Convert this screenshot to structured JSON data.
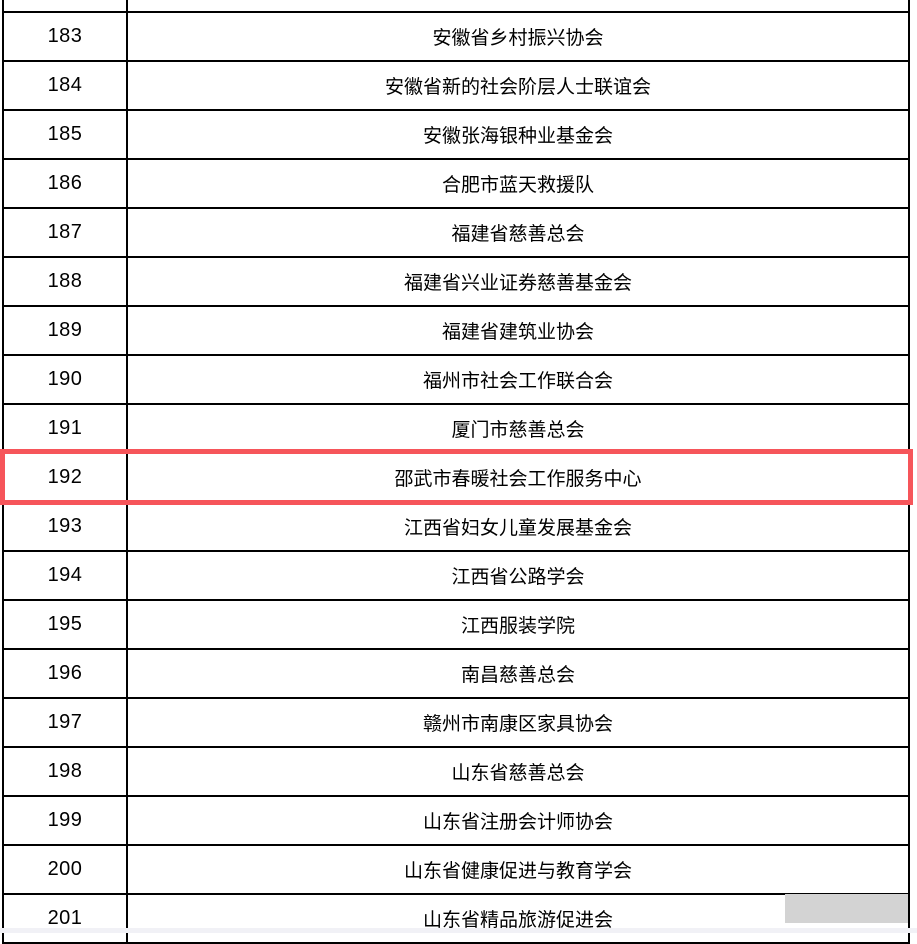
{
  "colors": {
    "table_border": "#000000",
    "highlight_red": "#f6555a",
    "overlay_gray": "#d3d3d3",
    "bottom_strip": "#f1f1f6",
    "text": "#000000"
  },
  "table": {
    "highlighted_row_no": "192",
    "rows": [
      {
        "no": "183",
        "name": "安徽省乡村振兴协会"
      },
      {
        "no": "184",
        "name": "安徽省新的社会阶层人士联谊会"
      },
      {
        "no": "185",
        "name": "安徽张海银种业基金会"
      },
      {
        "no": "186",
        "name": "合肥市蓝天救援队"
      },
      {
        "no": "187",
        "name": "福建省慈善总会"
      },
      {
        "no": "188",
        "name": "福建省兴业证券慈善基金会"
      },
      {
        "no": "189",
        "name": "福建省建筑业协会"
      },
      {
        "no": "190",
        "name": "福州市社会工作联合会"
      },
      {
        "no": "191",
        "name": "厦门市慈善总会"
      },
      {
        "no": "192",
        "name": "邵武市春暖社会工作服务中心"
      },
      {
        "no": "193",
        "name": "江西省妇女儿童发展基金会"
      },
      {
        "no": "194",
        "name": "江西省公路学会"
      },
      {
        "no": "195",
        "name": "江西服装学院"
      },
      {
        "no": "196",
        "name": "南昌慈善总会"
      },
      {
        "no": "197",
        "name": "赣州市南康区家具协会"
      },
      {
        "no": "198",
        "name": "山东省慈善总会"
      },
      {
        "no": "199",
        "name": "山东省注册会计师协会"
      },
      {
        "no": "200",
        "name": "山东省健康促进与教育学会"
      },
      {
        "no": "201",
        "name": "山东省精品旅游促进会"
      }
    ]
  }
}
